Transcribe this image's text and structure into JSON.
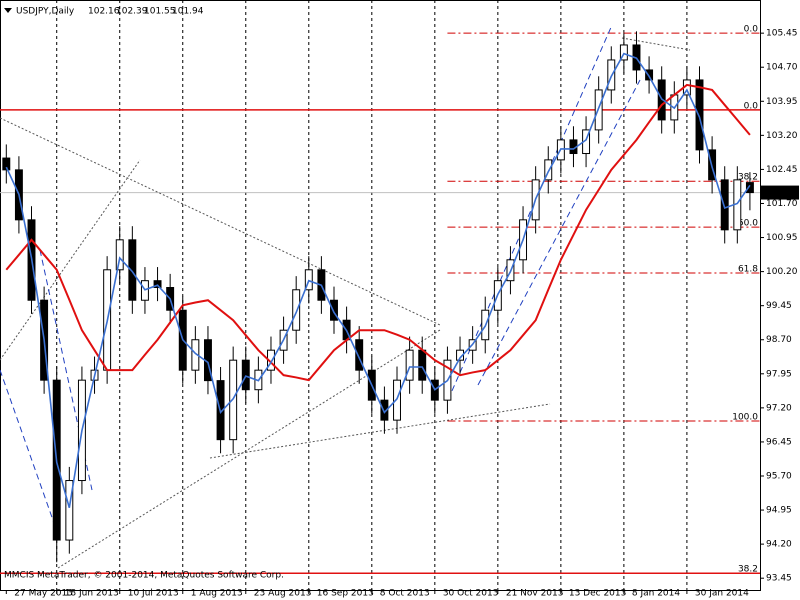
{
  "chart_data": {
    "type": "candlestick",
    "symbol": "USDJPY,Daily",
    "copyright": "MMCIS MetaTrader, © 2001-2014, MetaQuotes Software Corp.",
    "x": [
      0,
      1,
      2,
      3,
      4,
      5,
      6,
      7,
      8,
      9,
      10,
      11,
      12,
      13,
      14,
      15,
      16,
      17,
      18,
      19,
      20,
      21,
      22,
      23,
      24,
      25,
      26,
      27,
      28,
      29,
      30,
      31,
      32,
      33,
      34,
      35,
      36,
      37,
      38,
      39,
      40,
      41,
      42,
      43,
      44,
      45,
      46,
      47,
      48,
      49,
      50,
      51,
      52,
      53,
      54,
      55,
      56,
      57,
      58,
      59
    ],
    "open": [
      102.7,
      102.44,
      101.34,
      99.57,
      97.81,
      94.29,
      95.6,
      97.81,
      98.03,
      100.24,
      100.9,
      99.57,
      100.0,
      99.85,
      99.35,
      98.03,
      98.7,
      97.8,
      96.5,
      98.25,
      97.6,
      98.03,
      98.47,
      98.91,
      99.8,
      100.24,
      99.57,
      99.13,
      98.7,
      98.03,
      97.37,
      96.93,
      97.81,
      98.47,
      97.81,
      97.37,
      98.25,
      98.47,
      98.7,
      99.35,
      100.0,
      100.46,
      101.34,
      102.22,
      102.66,
      103.1,
      102.8,
      103.32,
      104.2,
      104.86,
      105.19,
      104.64,
      104.42,
      103.54,
      104.09,
      104.42,
      102.88,
      102.22,
      101.12,
      102.16
    ],
    "high": [
      103.0,
      102.74,
      101.64,
      99.87,
      98.11,
      95.9,
      98.11,
      98.33,
      100.54,
      101.2,
      101.2,
      100.3,
      100.3,
      100.15,
      99.65,
      99.0,
      99.0,
      98.1,
      98.55,
      98.55,
      98.33,
      98.77,
      99.21,
      100.1,
      100.54,
      100.54,
      99.87,
      99.43,
      99.0,
      98.33,
      97.67,
      98.11,
      98.77,
      98.77,
      98.11,
      98.55,
      98.77,
      99.0,
      99.65,
      100.3,
      100.76,
      101.64,
      102.52,
      102.96,
      103.4,
      103.4,
      103.62,
      104.5,
      105.16,
      105.45,
      105.49,
      104.94,
      104.72,
      104.39,
      104.72,
      104.72,
      103.18,
      102.52,
      102.52,
      102.39
    ],
    "low": [
      102.14,
      101.04,
      99.27,
      97.51,
      93.8,
      93.99,
      95.3,
      97.51,
      97.73,
      99.94,
      99.27,
      99.27,
      99.55,
      99.05,
      97.73,
      97.73,
      97.5,
      96.2,
      96.2,
      97.3,
      97.3,
      97.73,
      98.17,
      98.61,
      99.5,
      99.27,
      98.83,
      98.4,
      97.73,
      97.07,
      96.63,
      96.63,
      97.51,
      97.51,
      97.07,
      97.07,
      97.95,
      98.17,
      98.4,
      99.05,
      99.7,
      100.16,
      101.04,
      101.92,
      102.36,
      102.5,
      102.5,
      103.02,
      103.9,
      104.56,
      104.34,
      104.12,
      103.24,
      103.24,
      103.79,
      102.58,
      101.92,
      100.82,
      100.82,
      101.55
    ],
    "close": [
      102.44,
      101.34,
      99.57,
      97.81,
      94.29,
      95.6,
      97.81,
      98.03,
      100.24,
      100.9,
      99.57,
      100.0,
      99.85,
      99.35,
      98.03,
      98.7,
      97.8,
      96.5,
      98.25,
      97.6,
      98.03,
      98.47,
      98.91,
      99.8,
      100.24,
      99.57,
      99.13,
      98.7,
      98.03,
      97.37,
      96.93,
      97.81,
      98.47,
      97.81,
      97.37,
      98.25,
      98.47,
      98.7,
      99.35,
      100.0,
      100.46,
      101.34,
      102.22,
      102.66,
      103.1,
      102.8,
      103.32,
      104.2,
      104.86,
      105.19,
      104.64,
      104.42,
      103.54,
      104.09,
      104.42,
      102.88,
      102.22,
      101.12,
      102.22,
      101.94
    ],
    "bull_color": "#ffffff",
    "bear_color": "#000000",
    "lines": [
      {
        "color": "#e01010",
        "values": [
          100.24,
          100.57,
          100.9,
          100.57,
          100.24,
          99.58,
          98.91,
          98.47,
          98.03,
          98.03,
          98.03,
          98.37,
          98.7,
          99.08,
          99.46,
          99.52,
          99.57,
          99.35,
          99.13,
          98.8,
          98.47,
          98.2,
          97.92,
          97.87,
          97.81,
          98.14,
          98.47,
          98.69,
          98.91,
          98.91,
          98.91,
          98.81,
          98.7,
          98.48,
          98.25,
          98.09,
          97.92,
          97.98,
          98.03,
          98.25,
          98.47,
          98.8,
          99.13,
          99.8,
          100.46,
          101.01,
          101.56,
          102.0,
          102.44,
          102.77,
          103.1,
          103.49,
          103.87,
          104.09,
          104.31,
          104.26,
          104.2,
          103.87,
          103.54,
          103.21
        ]
      },
      {
        "color": "#3a6fd0",
        "values": [
          102.5,
          101.9,
          100.5,
          98.7,
          96.0,
          95.0,
          96.7,
          97.9,
          99.1,
          100.5,
          100.2,
          99.8,
          99.9,
          99.6,
          98.7,
          98.4,
          98.2,
          97.1,
          97.4,
          97.9,
          97.8,
          98.2,
          98.7,
          99.3,
          100.0,
          99.9,
          99.3,
          98.9,
          98.3,
          97.7,
          97.1,
          97.4,
          98.1,
          98.1,
          97.6,
          97.8,
          98.3,
          98.6,
          99.0,
          99.7,
          100.2,
          100.9,
          101.8,
          102.4,
          102.9,
          102.9,
          103.1,
          103.8,
          104.5,
          105.0,
          104.9,
          104.5,
          104.0,
          103.8,
          104.2,
          103.6,
          102.5,
          101.6,
          101.7,
          102.1
        ]
      }
    ],
    "levels": [
      {
        "label": "0.0",
        "value": 105.45,
        "style": "dash-dot",
        "color": "#d00000"
      },
      {
        "label": "38.2",
        "value": 102.19,
        "style": "dash-dot",
        "color": "#d00000"
      },
      {
        "label": "50.0",
        "value": 101.18,
        "style": "dash-dot",
        "color": "#d00000"
      },
      {
        "label": "61.8",
        "value": 100.17,
        "style": "dash-dot",
        "color": "#d00000"
      },
      {
        "label": "100.0",
        "value": 96.91,
        "style": "dash-dot",
        "color": "#d00000"
      },
      {
        "label": "0.0",
        "value": 103.76,
        "style": "solid",
        "color": "#e01010"
      },
      {
        "label": "38.2",
        "value": 93.56,
        "style": "solid",
        "color": "#e01010"
      }
    ],
    "xlim": [
      -0.5,
      59.8
    ],
    "xticks": [
      {
        "value": 0,
        "label": "27 May 2013"
      },
      {
        "value": 4,
        "label": "18 Jun 2013"
      },
      {
        "value": 9,
        "label": "10 Jul 2013"
      },
      {
        "value": 14,
        "label": "1 Aug 2013"
      },
      {
        "value": 19,
        "label": "23 Aug 2013"
      },
      {
        "value": 24,
        "label": "16 Sep 2013"
      },
      {
        "value": 29,
        "label": "8 Oct 2013"
      },
      {
        "value": 34,
        "label": "30 Oct 2013"
      },
      {
        "value": 39,
        "label": "21 Nov 2013"
      },
      {
        "value": 44,
        "label": "13 Dec 2013"
      },
      {
        "value": 49,
        "label": "8 Jan 2014"
      },
      {
        "value": 54,
        "label": "30 Jan 2014"
      }
    ],
    "ylim": [
      93.19,
      106.18
    ],
    "yticks": [
      105.45,
      {
        "value": 104.7,
        "label": "104.70"
      },
      103.95,
      {
        "value": 103.2,
        "label": "103.20"
      },
      102.45,
      {
        "value": 101.7,
        "label": "101.70"
      },
      100.95,
      {
        "value": 100.2,
        "label": "100.20"
      },
      99.45,
      {
        "value": 98.7,
        "label": "98.70"
      },
      97.95,
      {
        "value": 97.2,
        "label": "97.20"
      },
      96.45,
      {
        "value": 95.7,
        "label": "95.70"
      },
      94.95,
      {
        "value": 94.2,
        "label": "94.20"
      },
      93.45
    ],
    "grid": true
  }
}
